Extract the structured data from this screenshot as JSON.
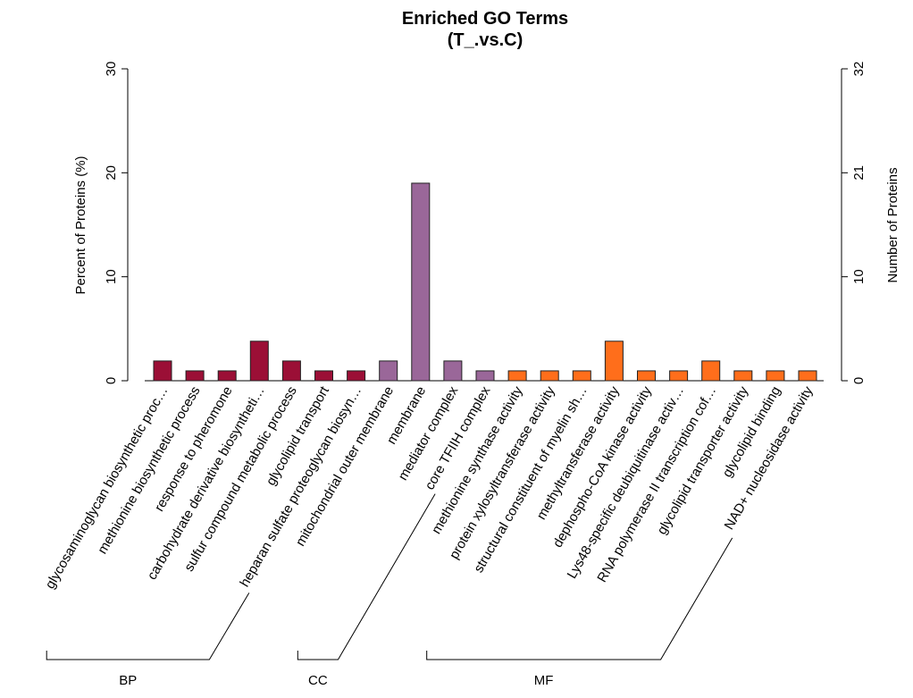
{
  "chart_data": {
    "type": "bar",
    "title": "Enriched GO Terms",
    "subtitle": "(T_.vs.C)",
    "ylabel": "Percent of Proteins (%)",
    "ylabel_right": "Number of Proteins",
    "ylim": [
      0,
      30
    ],
    "yticks": [
      0,
      10,
      20,
      30
    ],
    "yticks_right": [
      0,
      10,
      21,
      32
    ],
    "categories": [
      "glycosaminoglycan biosynthetic proc…",
      "methionine biosynthetic process",
      "response to pheromone",
      "carbohydrate derivative biosyntheti…",
      "sulfur compound metabolic process",
      "glycolipid transport",
      "heparan sulfate proteoglycan biosyn…",
      "mitochondrial outer membrane",
      "membrane",
      "mediator complex",
      "core TFIIH complex",
      "methionine synthase activity",
      "protein xylosyltransferase activity",
      "structural constituent of myelin sh…",
      "methyltransferase activity",
      "dephospho-CoA kinase activity",
      "Lys48-specific deubiquitinase activ…",
      "RNA polymerase II transcription cof…",
      "glycolipid transporter activity",
      "glycolipid binding",
      "NAD+ nucleosidase activity"
    ],
    "values": [
      1.9,
      0.95,
      0.95,
      3.8,
      1.9,
      0.95,
      0.95,
      1.9,
      19.0,
      1.9,
      0.95,
      0.95,
      0.95,
      0.95,
      3.8,
      0.95,
      0.95,
      1.9,
      0.95,
      0.95,
      0.95
    ],
    "groups": [
      {
        "name": "BP",
        "start": 0,
        "end": 6,
        "color": "#9B0F36"
      },
      {
        "name": "CC",
        "start": 7,
        "end": 10,
        "color": "#9A6799"
      },
      {
        "name": "MF",
        "start": 11,
        "end": 20,
        "color": "#FF6E1B"
      }
    ],
    "grid": false,
    "legend": "none"
  }
}
